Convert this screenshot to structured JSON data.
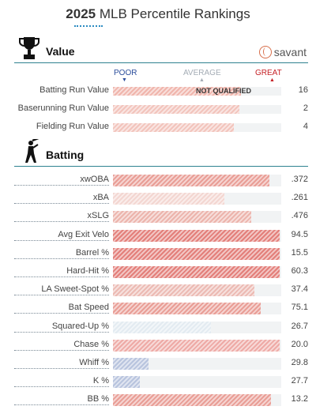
{
  "header": {
    "year": "2025",
    "title_rest": "MLB Percentile Rankings"
  },
  "value_section": {
    "title": "Value",
    "brand": "savant",
    "scale": {
      "poor": "POOR",
      "average": "AVERAGE",
      "great": "GREAT"
    },
    "rows": [
      {
        "name": "Batting Run Value",
        "value": "16",
        "pct": 76,
        "color": "#f0b5ac",
        "note": "NOT QUALIFIED"
      },
      {
        "name": "Baserunning Run Value",
        "value": "2",
        "pct": 75,
        "color": "#f2c4bc",
        "note": ""
      },
      {
        "name": "Fielding Run Value",
        "value": "4",
        "pct": 72,
        "color": "#f2c4bc",
        "note": ""
      }
    ]
  },
  "batting_section": {
    "title": "Batting",
    "rows": [
      {
        "name": "xwOBA",
        "value": ".372",
        "pct": 93,
        "color": "#e99e96"
      },
      {
        "name": "xBA",
        "value": ".261",
        "pct": 66,
        "color": "#f3d6d1"
      },
      {
        "name": "xSLG",
        "value": ".476",
        "pct": 82,
        "color": "#ecb4ac"
      },
      {
        "name": "Avg Exit Velo",
        "value": "94.5",
        "pct": 99,
        "color": "#e37f7a"
      },
      {
        "name": "Barrel %",
        "value": "15.5",
        "pct": 99,
        "color": "#e37f7a"
      },
      {
        "name": "Hard-Hit %",
        "value": "60.3",
        "pct": 99,
        "color": "#e37f7a"
      },
      {
        "name": "LA Sweet-Spot %",
        "value": "37.4",
        "pct": 84,
        "color": "#ecbab3"
      },
      {
        "name": "Bat Speed",
        "value": "75.1",
        "pct": 88,
        "color": "#e99e96"
      },
      {
        "name": "Squared-Up %",
        "value": "26.7",
        "pct": 58,
        "color": "#e3ebf1"
      },
      {
        "name": "Chase %",
        "value": "20.0",
        "pct": 99,
        "color": "#eeaaa6"
      },
      {
        "name": "Whiff %",
        "value": "29.8",
        "pct": 21,
        "color": "#b8c4de"
      },
      {
        "name": "K %",
        "value": "27.7",
        "pct": 16,
        "color": "#b8c4de"
      },
      {
        "name": "BB %",
        "value": "13.2",
        "pct": 94,
        "color": "#e99e96"
      }
    ]
  }
}
